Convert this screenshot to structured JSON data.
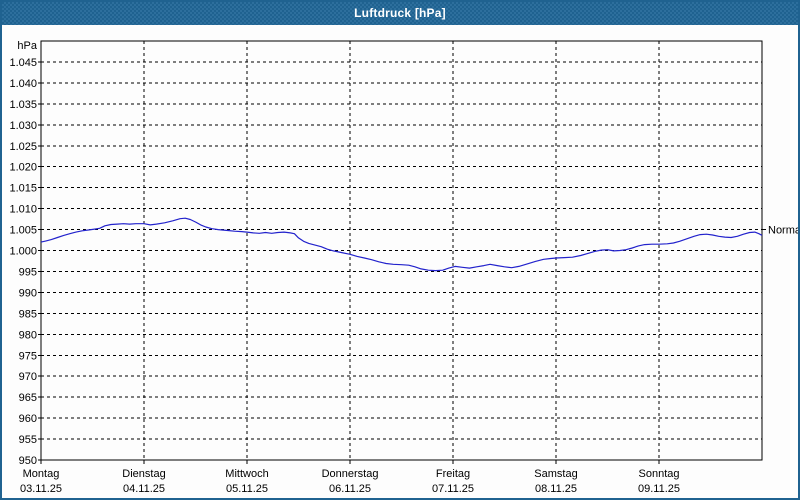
{
  "window": {
    "title": "Luftdruck [hPa]",
    "colors": {
      "titlebar": "#1f6290",
      "titlebar_dot": "#2d6f9d",
      "border": "#1f6290",
      "background": "#fdfdfd",
      "line": "#2222cc",
      "grid": "#000000",
      "text": "#000000"
    }
  },
  "chart_data": {
    "type": "line",
    "title": "Luftdruck [hPa]",
    "unit_label": "hPa",
    "ylabel": "Luftdruck",
    "ylim": [
      950,
      1050
    ],
    "ytick_step": 5,
    "grid": "dashed",
    "legend_position": "none",
    "normal_marker": {
      "label": "Normal",
      "value": 1005
    },
    "yticks": [
      {
        "v": 950,
        "label": "950"
      },
      {
        "v": 955,
        "label": "955"
      },
      {
        "v": 960,
        "label": "960"
      },
      {
        "v": 965,
        "label": "965"
      },
      {
        "v": 970,
        "label": "970"
      },
      {
        "v": 975,
        "label": "975"
      },
      {
        "v": 980,
        "label": "980"
      },
      {
        "v": 985,
        "label": "985"
      },
      {
        "v": 990,
        "label": "990"
      },
      {
        "v": 995,
        "label": "995"
      },
      {
        "v": 1000,
        "label": "1.000"
      },
      {
        "v": 1005,
        "label": "1.005"
      },
      {
        "v": 1010,
        "label": "1.010"
      },
      {
        "v": 1015,
        "label": "1.015"
      },
      {
        "v": 1020,
        "label": "1.020"
      },
      {
        "v": 1025,
        "label": "1.025"
      },
      {
        "v": 1030,
        "label": "1.030"
      },
      {
        "v": 1035,
        "label": "1.035"
      },
      {
        "v": 1040,
        "label": "1.040"
      },
      {
        "v": 1045,
        "label": "1.045"
      }
    ],
    "x_days": [
      {
        "name": "Montag",
        "date": "03.11.25"
      },
      {
        "name": "Dienstag",
        "date": "04.11.25"
      },
      {
        "name": "Mittwoch",
        "date": "05.11.25"
      },
      {
        "name": "Donnerstag",
        "date": "06.11.25"
      },
      {
        "name": "Freitag",
        "date": "07.11.25"
      },
      {
        "name": "Samstag",
        "date": "08.11.25"
      },
      {
        "name": "Sonntag",
        "date": "09.11.25"
      }
    ],
    "series": [
      {
        "name": "Luftdruck",
        "points": [
          [
            0.0,
            1002.0
          ],
          [
            0.05,
            1002.3
          ],
          [
            0.1,
            1002.6
          ],
          [
            0.16,
            1003.1
          ],
          [
            0.22,
            1003.6
          ],
          [
            0.28,
            1004.0
          ],
          [
            0.34,
            1004.4
          ],
          [
            0.4,
            1004.7
          ],
          [
            0.46,
            1004.9
          ],
          [
            0.52,
            1005.1
          ],
          [
            0.57,
            1005.3
          ],
          [
            0.62,
            1005.9
          ],
          [
            0.68,
            1006.2
          ],
          [
            0.74,
            1006.3
          ],
          [
            0.8,
            1006.4
          ],
          [
            0.86,
            1006.3
          ],
          [
            0.92,
            1006.4
          ],
          [
            1.0,
            1006.4
          ],
          [
            1.06,
            1006.1
          ],
          [
            1.12,
            1006.3
          ],
          [
            1.2,
            1006.6
          ],
          [
            1.28,
            1007.1
          ],
          [
            1.35,
            1007.6
          ],
          [
            1.4,
            1007.7
          ],
          [
            1.45,
            1007.4
          ],
          [
            1.5,
            1006.8
          ],
          [
            1.55,
            1006.1
          ],
          [
            1.6,
            1005.6
          ],
          [
            1.66,
            1005.2
          ],
          [
            1.72,
            1005.0
          ],
          [
            1.8,
            1004.8
          ],
          [
            1.88,
            1004.6
          ],
          [
            1.95,
            1004.5
          ],
          [
            2.0,
            1004.4
          ],
          [
            2.06,
            1004.2
          ],
          [
            2.12,
            1004.1
          ],
          [
            2.18,
            1004.3
          ],
          [
            2.24,
            1004.1
          ],
          [
            2.3,
            1004.3
          ],
          [
            2.36,
            1004.4
          ],
          [
            2.42,
            1004.2
          ],
          [
            2.46,
            1004.0
          ],
          [
            2.5,
            1003.0
          ],
          [
            2.55,
            1002.2
          ],
          [
            2.6,
            1001.7
          ],
          [
            2.66,
            1001.3
          ],
          [
            2.72,
            1000.9
          ],
          [
            2.78,
            1000.3
          ],
          [
            2.84,
            999.9
          ],
          [
            2.92,
            999.5
          ],
          [
            3.0,
            999.1
          ],
          [
            3.07,
            998.6
          ],
          [
            3.14,
            998.2
          ],
          [
            3.21,
            997.8
          ],
          [
            3.28,
            997.3
          ],
          [
            3.35,
            996.9
          ],
          [
            3.42,
            996.7
          ],
          [
            3.5,
            996.6
          ],
          [
            3.57,
            996.5
          ],
          [
            3.63,
            996.1
          ],
          [
            3.69,
            995.6
          ],
          [
            3.76,
            995.3
          ],
          [
            3.83,
            995.2
          ],
          [
            3.9,
            995.3
          ],
          [
            3.96,
            995.8
          ],
          [
            4.02,
            996.2
          ],
          [
            4.09,
            996.0
          ],
          [
            4.16,
            995.8
          ],
          [
            4.23,
            996.1
          ],
          [
            4.3,
            996.4
          ],
          [
            4.36,
            996.7
          ],
          [
            4.43,
            996.4
          ],
          [
            4.5,
            996.1
          ],
          [
            4.57,
            995.9
          ],
          [
            4.64,
            996.2
          ],
          [
            4.72,
            996.8
          ],
          [
            4.8,
            997.4
          ],
          [
            4.88,
            997.9
          ],
          [
            4.95,
            998.1
          ],
          [
            5.0,
            998.2
          ],
          [
            5.08,
            998.3
          ],
          [
            5.16,
            998.4
          ],
          [
            5.24,
            998.8
          ],
          [
            5.31,
            999.3
          ],
          [
            5.38,
            999.8
          ],
          [
            5.44,
            1000.1
          ],
          [
            5.5,
            1000.2
          ],
          [
            5.56,
            999.9
          ],
          [
            5.62,
            1000.0
          ],
          [
            5.68,
            1000.2
          ],
          [
            5.74,
            1000.6
          ],
          [
            5.8,
            1001.1
          ],
          [
            5.86,
            1001.4
          ],
          [
            5.93,
            1001.5
          ],
          [
            6.0,
            1001.5
          ],
          [
            6.08,
            1001.6
          ],
          [
            6.14,
            1001.8
          ],
          [
            6.2,
            1002.2
          ],
          [
            6.27,
            1002.8
          ],
          [
            6.34,
            1003.4
          ],
          [
            6.4,
            1003.8
          ],
          [
            6.46,
            1003.9
          ],
          [
            6.52,
            1003.7
          ],
          [
            6.58,
            1003.4
          ],
          [
            6.64,
            1003.2
          ],
          [
            6.7,
            1003.1
          ],
          [
            6.76,
            1003.4
          ],
          [
            6.82,
            1003.9
          ],
          [
            6.88,
            1004.3
          ],
          [
            6.93,
            1004.4
          ],
          [
            6.97,
            1004.0
          ],
          [
            7.0,
            1003.6
          ]
        ]
      }
    ]
  }
}
